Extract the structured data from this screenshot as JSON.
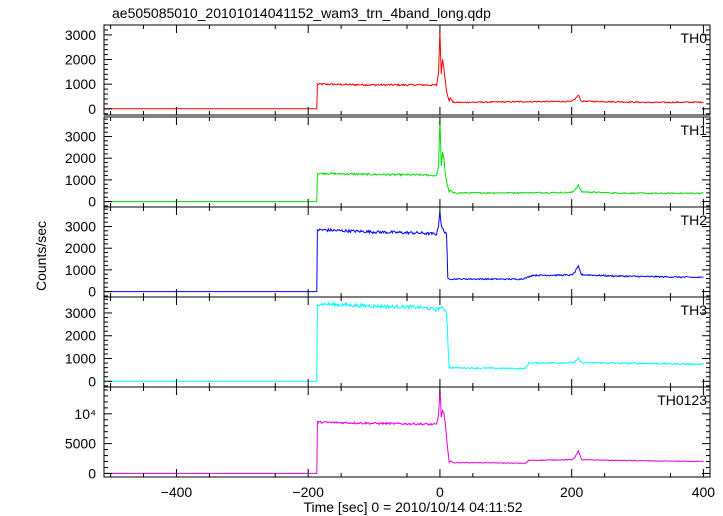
{
  "chart_data": {
    "type": "line",
    "title": "ae505085010_20101014041152_wam3_trn_4band_long.qdp",
    "xlabel": "Time [sec] 0 = 2010/10/14 04:11:52",
    "ylabel": "Counts/sec",
    "xlim": [
      -510,
      410
    ],
    "x_ticks": [
      -400,
      -200,
      0,
      200,
      400
    ],
    "x_tick_labels": [
      "−400",
      "−200",
      "0",
      "200",
      "400"
    ],
    "grid": false,
    "panels": [
      {
        "name": "TH0",
        "color": "#ff0000",
        "ylim": [
          -250,
          3400
        ],
        "y_ticks": [
          0,
          1000,
          2000,
          3000
        ],
        "y_tick_labels": [
          "0",
          "1000",
          "2000",
          "3000"
        ],
        "x": [
          -510,
          -187,
          -186,
          -100,
          -30,
          -5,
          -2,
          0,
          2,
          4,
          6,
          8,
          10,
          14,
          16,
          20,
          60,
          130,
          200,
          205,
          210,
          215,
          260,
          320,
          400
        ],
        "values": [
          0,
          0,
          1000,
          970,
          970,
          960,
          1500,
          3150,
          1400,
          2050,
          1700,
          1150,
          700,
          320,
          450,
          260,
          270,
          290,
          300,
          400,
          550,
          310,
          290,
          260,
          270
        ]
      },
      {
        "name": "TH1",
        "color": "#00e000",
        "ylim": [
          -250,
          3900
        ],
        "y_ticks": [
          0,
          1000,
          2000,
          3000
        ],
        "y_tick_labels": [
          "0",
          "1000",
          "2000",
          "3000"
        ],
        "x": [
          -510,
          -187,
          -186,
          -100,
          -30,
          -5,
          -2,
          0,
          2,
          4,
          6,
          8,
          10,
          14,
          16,
          20,
          60,
          130,
          200,
          205,
          210,
          215,
          260,
          320,
          400
        ],
        "values": [
          0,
          0,
          1300,
          1250,
          1230,
          1200,
          1700,
          3800,
          1600,
          2250,
          2000,
          1350,
          900,
          450,
          520,
          400,
          400,
          410,
          420,
          550,
          750,
          450,
          400,
          380,
          390
        ]
      },
      {
        "name": "TH2",
        "color": "#0000ff",
        "ylim": [
          -250,
          3900
        ],
        "y_ticks": [
          0,
          1000,
          2000,
          3000
        ],
        "y_tick_labels": [
          "0",
          "1000",
          "2000",
          "3000"
        ],
        "x": [
          -510,
          -187,
          -186,
          -100,
          -30,
          -5,
          -2,
          0,
          2,
          6,
          10,
          12,
          14,
          60,
          120,
          130,
          140,
          200,
          205,
          210,
          215,
          260,
          320,
          400
        ],
        "values": [
          0,
          0,
          2850,
          2750,
          2700,
          2650,
          3100,
          3750,
          3000,
          2800,
          2700,
          600,
          580,
          580,
          570,
          620,
          750,
          760,
          900,
          1150,
          780,
          720,
          690,
          650
        ]
      },
      {
        "name": "TH3",
        "color": "#00ffff",
        "ylim": [
          -250,
          3700
        ],
        "y_ticks": [
          0,
          1000,
          2000,
          3000
        ],
        "y_tick_labels": [
          "0",
          "1000",
          "2000",
          "3000"
        ],
        "x": [
          -510,
          -187,
          -186,
          -100,
          -30,
          -5,
          0,
          10,
          12,
          14,
          60,
          130,
          135,
          200,
          205,
          210,
          215,
          260,
          320,
          400
        ],
        "values": [
          0,
          0,
          3400,
          3300,
          3250,
          3150,
          3250,
          3100,
          1800,
          600,
          580,
          560,
          800,
          820,
          850,
          1000,
          820,
          800,
          780,
          750
        ]
      },
      {
        "name": "TH0123",
        "color": "#e000e0",
        "ylim": [
          -600,
          14500
        ],
        "y_ticks": [
          0,
          5000,
          10000
        ],
        "y_tick_labels": [
          "0",
          "5000",
          "10⁴"
        ],
        "x": [
          -510,
          -187,
          -186,
          -100,
          -30,
          -5,
          -2,
          0,
          2,
          4,
          6,
          8,
          10,
          14,
          16,
          20,
          60,
          130,
          135,
          200,
          205,
          210,
          215,
          260,
          320,
          400
        ],
        "values": [
          0,
          0,
          8600,
          8400,
          8300,
          8200,
          10000,
          14200,
          9500,
          10500,
          10000,
          8500,
          6000,
          1900,
          2100,
          1800,
          1800,
          1700,
          2200,
          2300,
          2700,
          3800,
          2300,
          2200,
          2100,
          2000
        ]
      }
    ]
  }
}
